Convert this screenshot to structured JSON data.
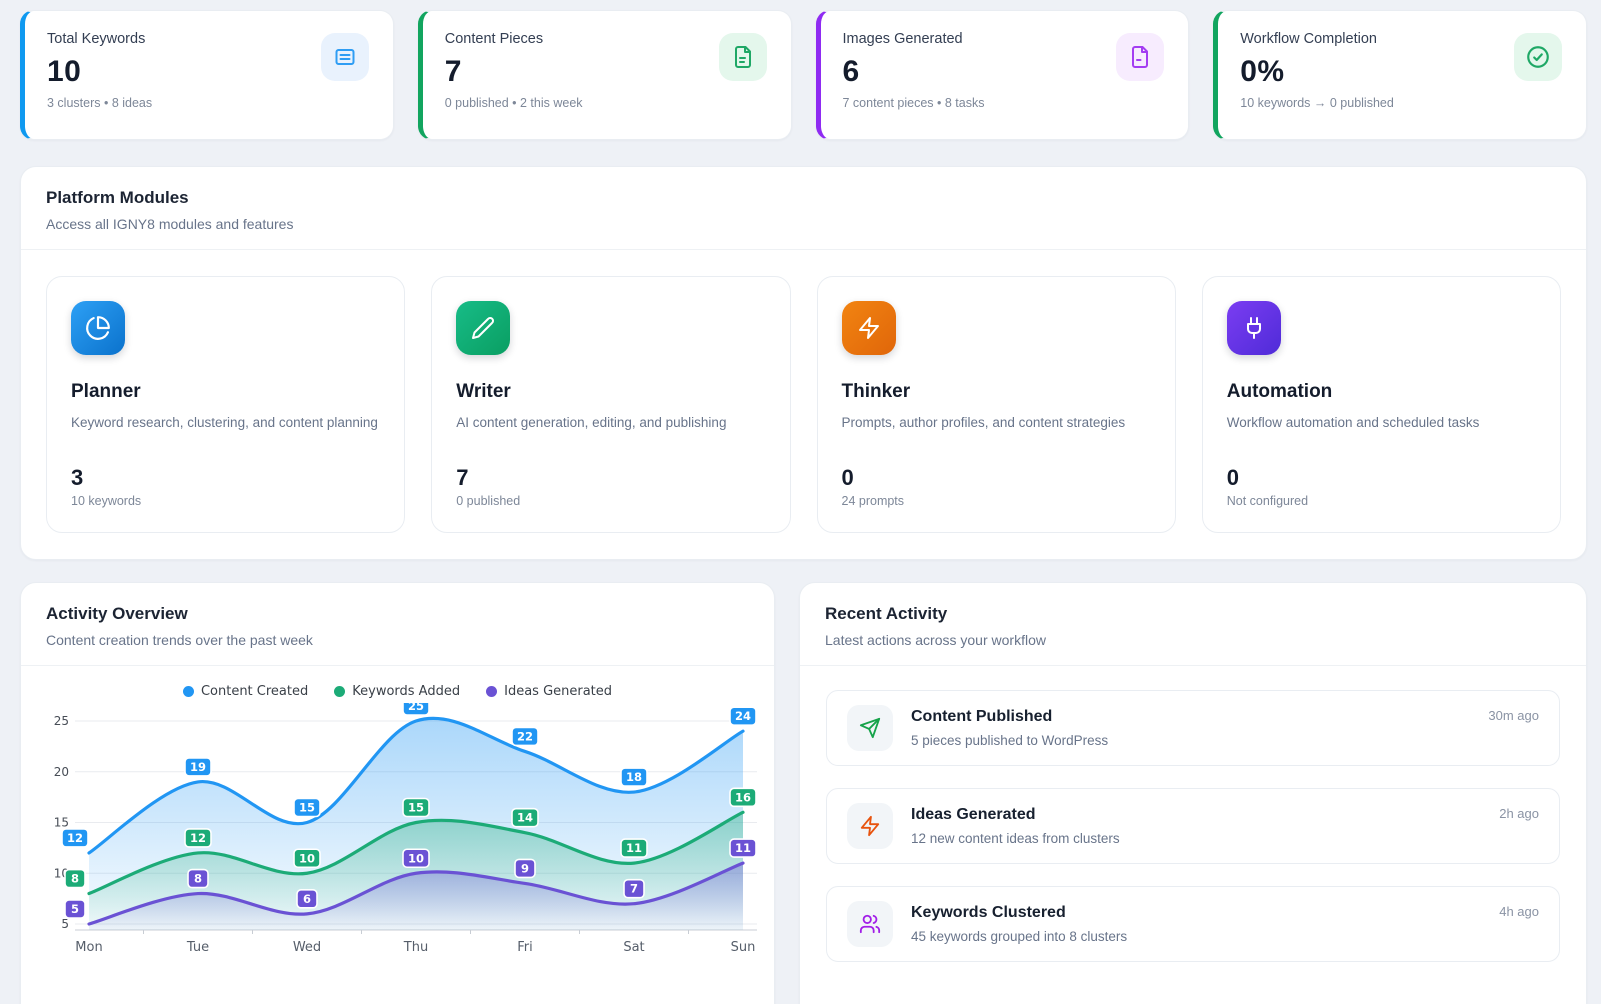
{
  "stats": [
    {
      "label": "Total Keywords",
      "value": "10",
      "sub": "3 clusters • 8 ideas",
      "accent": "#0f99f0",
      "icon": "list-icon",
      "icon_bg": "#e9f2fd",
      "icon_color": "#2e9df4"
    },
    {
      "label": "Content Pieces",
      "value": "7",
      "sub": "0 published • 2 this week",
      "accent": "#12a55f",
      "icon": "file-text-icon",
      "icon_bg": "#e4f7ec",
      "icon_color": "#1fa866"
    },
    {
      "label": "Images Generated",
      "value": "6",
      "sub": "7 content pieces • 8 tasks",
      "accent": "#8f2bf2",
      "icon": "file-image-icon",
      "icon_bg": "#f7ecfe",
      "icon_color": "#a43df2"
    },
    {
      "label": "Workflow Completion",
      "value": "0%",
      "sub": "10 keywords → 0 published",
      "accent": "#12a55f",
      "icon": "check-circle-icon",
      "icon_bg": "#e4f7ec",
      "icon_color": "#1fa866"
    }
  ],
  "modules_section": {
    "title": "Platform Modules",
    "subtitle": "Access all IGNY8 modules and features"
  },
  "modules": [
    {
      "name": "Planner",
      "description": "Keyword research, clustering, and content planning",
      "value": "3",
      "sub": "10 keywords",
      "icon": "pie-chart-icon",
      "gradient_css": "linear-gradient(135deg,#2da0f5,#0b72cc)"
    },
    {
      "name": "Writer",
      "description": "AI content generation, editing, and publishing",
      "value": "7",
      "sub": "0 published",
      "icon": "pencil-icon",
      "gradient_css": "linear-gradient(135deg,#17bc87,#0a9e62)"
    },
    {
      "name": "Thinker",
      "description": "Prompts, author profiles, and content strategies",
      "value": "0",
      "sub": "24 prompts",
      "icon": "zap-icon",
      "gradient_css": "linear-gradient(135deg,#f28411,#e0660a)"
    },
    {
      "name": "Automation",
      "description": "Workflow automation and scheduled tasks",
      "value": "0",
      "sub": "Not configured",
      "icon": "plug-icon",
      "gradient_css": "linear-gradient(135deg,#7b3df2,#4f2bd8)"
    }
  ],
  "activity_overview": {
    "title": "Activity Overview",
    "subtitle": "Content creation trends over the past week"
  },
  "chart_data": {
    "type": "area",
    "x": [
      "Mon",
      "Tue",
      "Wed",
      "Thu",
      "Fri",
      "Sat",
      "Sun"
    ],
    "series": [
      {
        "name": "Content Created",
        "color": "#2196f3",
        "values": [
          12,
          19,
          15,
          25,
          22,
          18,
          24
        ]
      },
      {
        "name": "Keywords Added",
        "color": "#1cab77",
        "values": [
          8,
          12,
          10,
          15,
          14,
          11,
          16
        ]
      },
      {
        "name": "Ideas Generated",
        "color": "#6a52d4",
        "values": [
          5,
          8,
          6,
          10,
          9,
          7,
          11
        ]
      }
    ],
    "ylim": [
      5,
      25
    ],
    "yticks": [
      5,
      10,
      15,
      20,
      25
    ],
    "grid": true,
    "legend_position": "top",
    "data_labels": true
  },
  "recent_activity": {
    "title": "Recent Activity",
    "subtitle": "Latest actions across your workflow",
    "items": [
      {
        "title": "Content Published",
        "description": "5 pieces published to WordPress",
        "time": "30m ago",
        "icon": "send-icon",
        "icon_color": "#16a34a"
      },
      {
        "title": "Ideas Generated",
        "description": "12 new content ideas from clusters",
        "time": "2h ago",
        "icon": "zap-icon",
        "icon_color": "#e8530e"
      },
      {
        "title": "Keywords Clustered",
        "description": "45 keywords grouped into 8 clusters",
        "time": "4h ago",
        "icon": "users-icon",
        "icon_color": "#a21ee8"
      }
    ]
  }
}
